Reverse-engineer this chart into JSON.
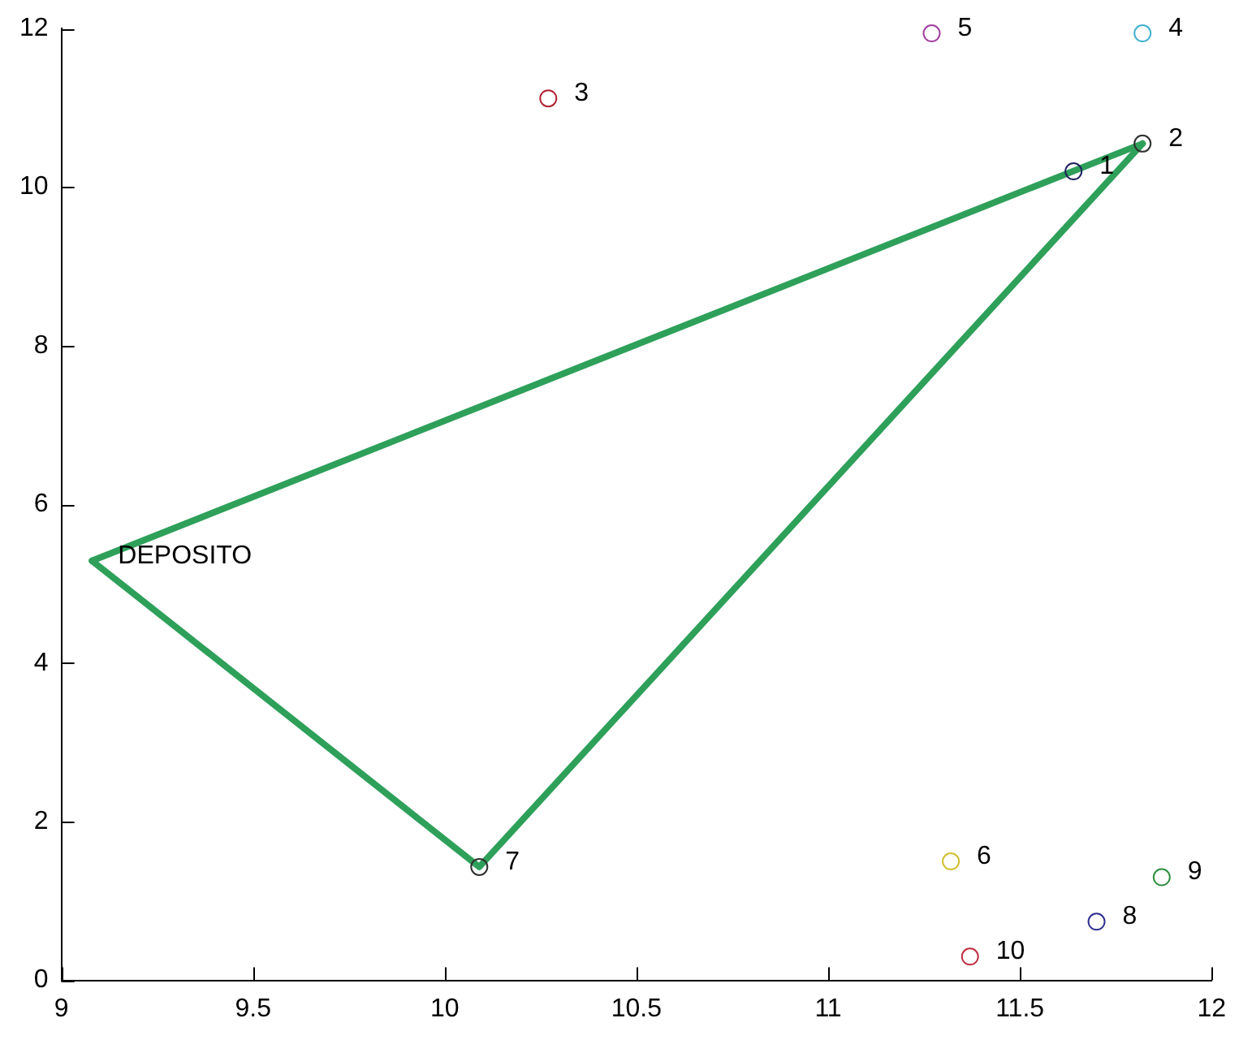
{
  "chart_data": {
    "type": "scatter",
    "xlim": [
      9,
      12
    ],
    "xticks": [
      9,
      9.5,
      10,
      10.5,
      11,
      11.5,
      12
    ],
    "ylim": [
      0,
      12
    ],
    "yticks": [
      0,
      2,
      4,
      6,
      8,
      10,
      12
    ],
    "grid": false,
    "legend": false,
    "marker": "circle",
    "series": [
      {
        "x": [
          11.64,
          11.82,
          10.27,
          11.82,
          11.27,
          11.32,
          10.09,
          11.7,
          11.87,
          11.37
        ],
        "values": [
          10.2,
          10.55,
          11.12,
          11.94,
          11.94,
          1.5,
          1.43,
          0.74,
          1.3,
          0.3
        ],
        "colors": [
          "#202060",
          "#303030",
          "#b02030",
          "#40b0d0",
          "#a040a0",
          "#d0c030",
          "#303030",
          "#303090",
          "#309040",
          "#c03040"
        ]
      },
      {
        "type": "line",
        "x": [
          9.08,
          11.82
        ],
        "values": [
          5.29,
          10.55
        ],
        "color": "#2ea05a",
        "marker": "none",
        "line_style": "solid"
      },
      {
        "type": "line",
        "x": [
          9.08,
          10.09,
          11.82
        ],
        "values": [
          5.29,
          1.43,
          10.55
        ],
        "color": "#2ea05a",
        "marker": "none",
        "line_style": "solid"
      }
    ],
    "annotations": [
      {
        "text": "1",
        "x": 11.64,
        "y": 10.2
      },
      {
        "text": "2",
        "x": 11.82,
        "y": 10.55
      },
      {
        "text": "3",
        "x": 10.27,
        "y": 11.12
      },
      {
        "text": "4",
        "x": 11.82,
        "y": 11.94
      },
      {
        "text": "5",
        "x": 11.27,
        "y": 11.94
      },
      {
        "text": "6",
        "x": 11.32,
        "y": 1.5
      },
      {
        "text": "7",
        "x": 10.09,
        "y": 1.43
      },
      {
        "text": "8",
        "x": 11.7,
        "y": 0.74
      },
      {
        "text": "9",
        "x": 11.87,
        "y": 1.3
      },
      {
        "text": "10",
        "x": 11.37,
        "y": 0.3
      },
      {
        "text": "DEPOSITO",
        "x": 9.08,
        "y": 5.29
      }
    ]
  }
}
